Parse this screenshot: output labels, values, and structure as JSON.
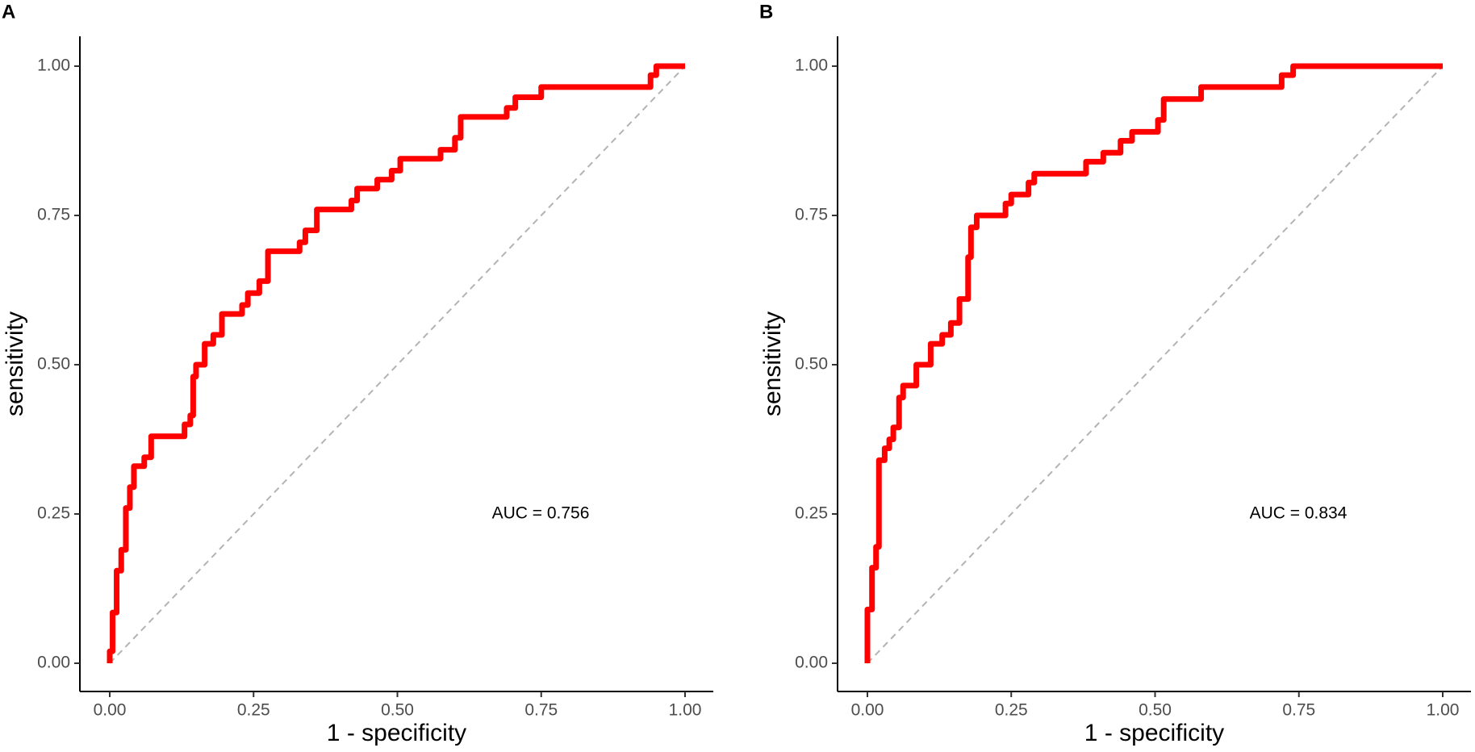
{
  "chart_data": [
    {
      "type": "line",
      "panel": "A",
      "x_label": "1 - specificity",
      "y_label": "sensitivity",
      "annotation": "AUC = 0.756",
      "xlim": [
        0,
        1
      ],
      "ylim": [
        0,
        1
      ],
      "xticks": [
        {
          "value": 0,
          "label": "0.00"
        },
        {
          "value": 0.25,
          "label": "0.25"
        },
        {
          "value": 0.5,
          "label": "0.50"
        },
        {
          "value": 0.75,
          "label": "0.75"
        },
        {
          "value": 1,
          "label": "1.00"
        }
      ],
      "yticks": [
        {
          "value": 0,
          "label": "0.00"
        },
        {
          "value": 0.25,
          "label": "0.25"
        },
        {
          "value": 0.5,
          "label": "0.50"
        },
        {
          "value": 0.75,
          "label": "0.75"
        },
        {
          "value": 1,
          "label": "1.00"
        }
      ],
      "series": [
        {
          "color": "#ff0000",
          "x": [
            0,
            0,
            0.005,
            0.005,
            0.012,
            0.012,
            0.02,
            0.02,
            0.028,
            0.028,
            0.035,
            0.035,
            0.042,
            0.042,
            0.06,
            0.06,
            0.072,
            0.072,
            0.13,
            0.13,
            0.14,
            0.14,
            0.145,
            0.145,
            0.15,
            0.15,
            0.165,
            0.165,
            0.18,
            0.18,
            0.195,
            0.195,
            0.23,
            0.23,
            0.24,
            0.24,
            0.26,
            0.26,
            0.275,
            0.275,
            0.33,
            0.33,
            0.34,
            0.34,
            0.36,
            0.36,
            0.42,
            0.42,
            0.43,
            0.43,
            0.465,
            0.465,
            0.49,
            0.49,
            0.505,
            0.505,
            0.575,
            0.575,
            0.6,
            0.6,
            0.61,
            0.61,
            0.69,
            0.69,
            0.705,
            0.705,
            0.75,
            0.75,
            0.94,
            0.94,
            0.95,
            0.95,
            1
          ],
          "values": [
            0,
            0.02,
            0.02,
            0.085,
            0.085,
            0.155,
            0.155,
            0.19,
            0.19,
            0.26,
            0.26,
            0.295,
            0.295,
            0.33,
            0.33,
            0.345,
            0.345,
            0.38,
            0.38,
            0.4,
            0.4,
            0.415,
            0.415,
            0.48,
            0.48,
            0.5,
            0.5,
            0.535,
            0.535,
            0.55,
            0.55,
            0.585,
            0.585,
            0.6,
            0.6,
            0.62,
            0.62,
            0.64,
            0.64,
            0.69,
            0.69,
            0.705,
            0.705,
            0.725,
            0.725,
            0.76,
            0.76,
            0.775,
            0.775,
            0.795,
            0.795,
            0.81,
            0.81,
            0.825,
            0.825,
            0.845,
            0.845,
            0.86,
            0.86,
            0.88,
            0.88,
            0.915,
            0.915,
            0.93,
            0.93,
            0.948,
            0.948,
            0.965,
            0.965,
            0.985,
            0.985,
            1,
            1
          ]
        }
      ]
    },
    {
      "type": "line",
      "panel": "B",
      "x_label": "1 - specificity",
      "y_label": "sensitivity",
      "annotation": "AUC = 0.834",
      "xlim": [
        0,
        1
      ],
      "ylim": [
        0,
        1
      ],
      "xticks": [
        {
          "value": 0,
          "label": "0.00"
        },
        {
          "value": 0.25,
          "label": "0.25"
        },
        {
          "value": 0.5,
          "label": "0.50"
        },
        {
          "value": 0.75,
          "label": "0.75"
        },
        {
          "value": 1,
          "label": "1.00"
        }
      ],
      "yticks": [
        {
          "value": 0,
          "label": "0.00"
        },
        {
          "value": 0.25,
          "label": "0.25"
        },
        {
          "value": 0.5,
          "label": "0.50"
        },
        {
          "value": 0.75,
          "label": "0.75"
        },
        {
          "value": 1,
          "label": "1.00"
        }
      ],
      "series": [
        {
          "color": "#ff0000",
          "x": [
            0,
            0,
            0.008,
            0.008,
            0.015,
            0.015,
            0.02,
            0.02,
            0.03,
            0.03,
            0.038,
            0.038,
            0.045,
            0.045,
            0.055,
            0.055,
            0.062,
            0.062,
            0.085,
            0.085,
            0.11,
            0.11,
            0.13,
            0.13,
            0.145,
            0.145,
            0.16,
            0.16,
            0.175,
            0.175,
            0.18,
            0.18,
            0.19,
            0.19,
            0.24,
            0.24,
            0.25,
            0.25,
            0.28,
            0.28,
            0.29,
            0.29,
            0.38,
            0.38,
            0.41,
            0.41,
            0.44,
            0.44,
            0.46,
            0.46,
            0.505,
            0.505,
            0.515,
            0.515,
            0.58,
            0.58,
            0.72,
            0.72,
            0.74,
            0.74,
            1
          ],
          "values": [
            0,
            0.09,
            0.09,
            0.16,
            0.16,
            0.195,
            0.195,
            0.34,
            0.34,
            0.36,
            0.36,
            0.375,
            0.375,
            0.395,
            0.395,
            0.445,
            0.445,
            0.465,
            0.465,
            0.5,
            0.5,
            0.535,
            0.535,
            0.55,
            0.55,
            0.57,
            0.57,
            0.61,
            0.61,
            0.68,
            0.68,
            0.73,
            0.73,
            0.75,
            0.75,
            0.77,
            0.77,
            0.785,
            0.785,
            0.805,
            0.805,
            0.82,
            0.82,
            0.84,
            0.84,
            0.855,
            0.855,
            0.875,
            0.875,
            0.89,
            0.89,
            0.91,
            0.91,
            0.945,
            0.945,
            0.965,
            0.965,
            0.985,
            0.985,
            1,
            1
          ]
        }
      ]
    }
  ]
}
